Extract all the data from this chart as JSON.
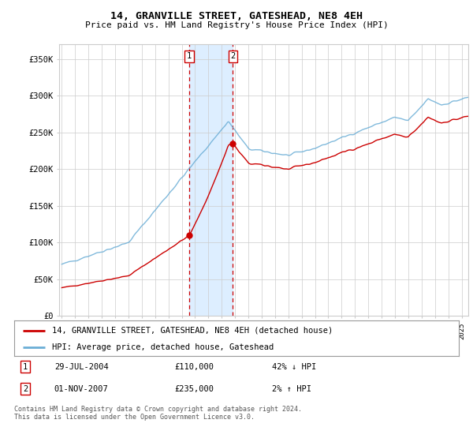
{
  "title": "14, GRANVILLE STREET, GATESHEAD, NE8 4EH",
  "subtitle": "Price paid vs. HM Land Registry's House Price Index (HPI)",
  "xlim_start": 1995.0,
  "xlim_end": 2025.5,
  "ylim_min": 0,
  "ylim_max": 370000,
  "yticks": [
    0,
    50000,
    100000,
    150000,
    200000,
    250000,
    300000,
    350000
  ],
  "ytick_labels": [
    "£0",
    "£50K",
    "£100K",
    "£150K",
    "£200K",
    "£250K",
    "£300K",
    "£350K"
  ],
  "sale1_date": 2004.57,
  "sale1_price": 110000,
  "sale1_label": "1",
  "sale2_date": 2007.83,
  "sale2_price": 235000,
  "sale2_label": "2",
  "hpi_color": "#6baed6",
  "price_color": "#cc0000",
  "shade_color": "#ddeeff",
  "grid_color": "#cccccc",
  "background_color": "#ffffff",
  "legend_line1": "14, GRANVILLE STREET, GATESHEAD, NE8 4EH (detached house)",
  "legend_line2": "HPI: Average price, detached house, Gateshead",
  "table_row1_num": "1",
  "table_row1_date": "29-JUL-2004",
  "table_row1_price": "£110,000",
  "table_row1_hpi": "42% ↓ HPI",
  "table_row2_num": "2",
  "table_row2_date": "01-NOV-2007",
  "table_row2_price": "£235,000",
  "table_row2_hpi": "2% ↑ HPI",
  "footnote": "Contains HM Land Registry data © Crown copyright and database right 2024.\nThis data is licensed under the Open Government Licence v3.0."
}
